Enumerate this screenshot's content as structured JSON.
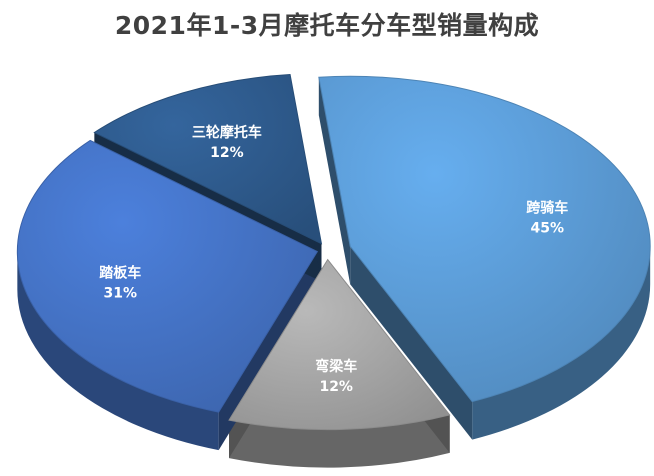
{
  "chart_data": {
    "type": "pie",
    "title": "2021年1-3月摩托车分车型销量构成",
    "unit": "%",
    "categories": [
      "跨骑车",
      "弯梁车",
      "踏板车",
      "三轮摩托车"
    ],
    "values": [
      45,
      12,
      31,
      12
    ],
    "labels": [
      "45%",
      "12%",
      "31%",
      "12%"
    ],
    "colors": [
      "#5B9BD5",
      "#A5A5A5",
      "#4472C4",
      "#2E5A8C"
    ],
    "style": "3d-exploded"
  }
}
